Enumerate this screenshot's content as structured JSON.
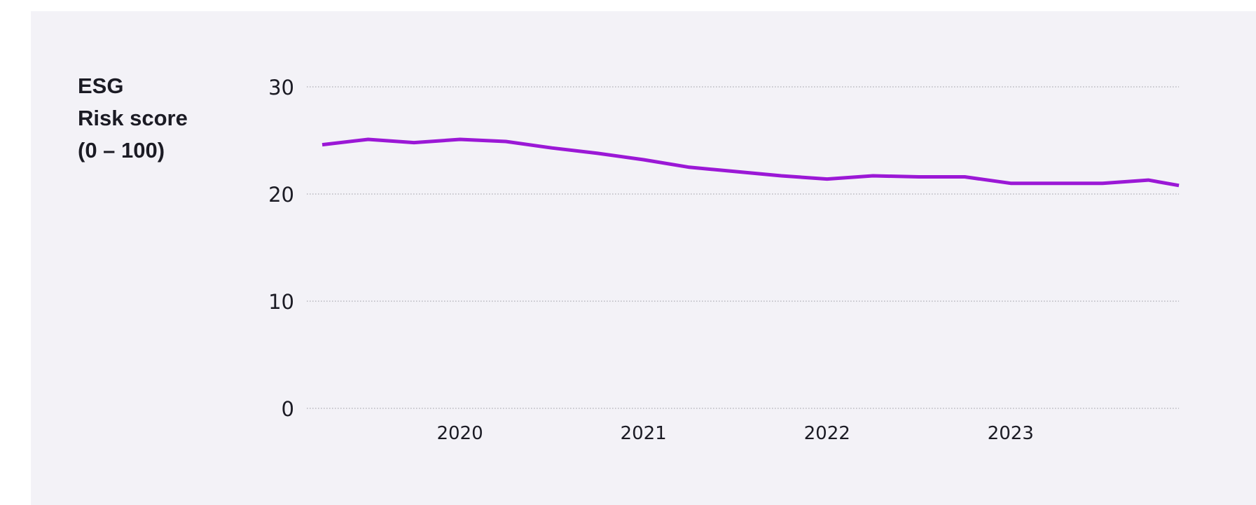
{
  "chart_data": {
    "type": "line",
    "title": "",
    "ylabel_lines": [
      "ESG",
      "Risk score",
      "(0 – 100)"
    ],
    "xlabel": "",
    "ylim": [
      0,
      30
    ],
    "yticks": [
      0,
      10,
      20,
      30
    ],
    "xticks": [
      "2020",
      "2021",
      "2022",
      "2023"
    ],
    "grid": true,
    "line_color": "#9b18d6",
    "background_color": "#f3f2f7",
    "series": [
      {
        "x": [
          "2019-04",
          "2019-07",
          "2019-10",
          "2020-01",
          "2020-04",
          "2020-07",
          "2020-10",
          "2021-01",
          "2021-04",
          "2021-07",
          "2021-10",
          "2022-01",
          "2022-04",
          "2022-07",
          "2022-10",
          "2023-01",
          "2023-04",
          "2023-07",
          "2023-10",
          "2023-12"
        ],
        "values": [
          24.6,
          25.1,
          24.8,
          25.1,
          24.9,
          24.3,
          23.8,
          23.2,
          22.5,
          22.1,
          21.7,
          21.4,
          21.7,
          21.6,
          21.6,
          21.0,
          21.0,
          21.0,
          21.3,
          20.8
        ]
      }
    ]
  }
}
